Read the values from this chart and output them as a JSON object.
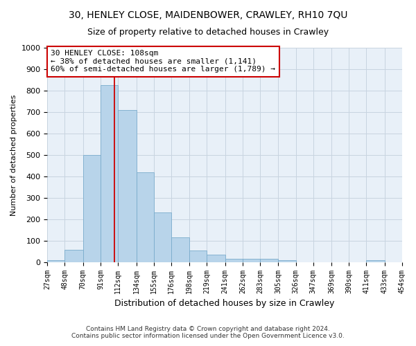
{
  "title_line1": "30, HENLEY CLOSE, MAIDENBOWER, CRAWLEY, RH10 7QU",
  "title_line2": "Size of property relative to detached houses in Crawley",
  "xlabel": "Distribution of detached houses by size in Crawley",
  "ylabel": "Number of detached properties",
  "bin_labels": [
    "27sqm",
    "48sqm",
    "70sqm",
    "91sqm",
    "112sqm",
    "134sqm",
    "155sqm",
    "176sqm",
    "198sqm",
    "219sqm",
    "241sqm",
    "262sqm",
    "283sqm",
    "305sqm",
    "326sqm",
    "347sqm",
    "369sqm",
    "390sqm",
    "411sqm",
    "433sqm",
    "454sqm"
  ],
  "bar_values": [
    8,
    57,
    500,
    825,
    710,
    418,
    230,
    115,
    55,
    33,
    15,
    15,
    15,
    10,
    0,
    0,
    0,
    0,
    10,
    0,
    0
  ],
  "bar_color": "#b8d4ea",
  "bar_edge_color": "#7aaccc",
  "subject_line_x_label": "112sqm",
  "subject_label": "30 HENLEY CLOSE: 108sqm",
  "annotation_line1": "← 38% of detached houses are smaller (1,141)",
  "annotation_line2": "60% of semi-detached houses are larger (1,789) →",
  "box_edge_color": "#cc0000",
  "subject_line_color": "#cc0000",
  "ylim": [
    0,
    1000
  ],
  "yticks": [
    0,
    100,
    200,
    300,
    400,
    500,
    600,
    700,
    800,
    900,
    1000
  ],
  "footnote1": "Contains HM Land Registry data © Crown copyright and database right 2024.",
  "footnote2": "Contains public sector information licensed under the Open Government Licence v3.0.",
  "bg_color": "#ffffff",
  "grid_color": "#c8d4e0",
  "title1_fontsize": 10,
  "title2_fontsize": 9,
  "ylabel_fontsize": 8,
  "xlabel_fontsize": 9
}
